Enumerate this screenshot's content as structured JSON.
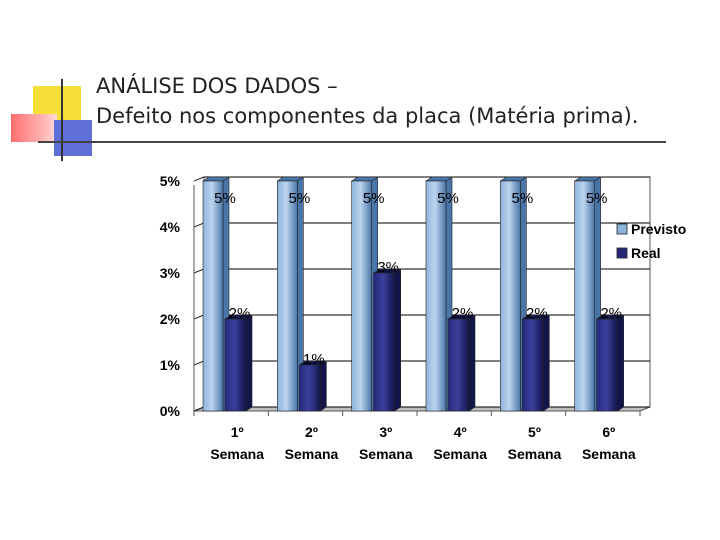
{
  "slide": {
    "title_line1": "ANÁLISE DOS DADOS –",
    "title_line2": "Defeito nos componentes da placa (Matéria prima)."
  },
  "colors": {
    "previsto_light": "#bcd4ee",
    "previsto_mid": "#8fb4dc",
    "previsto_dark": "#4a75a8",
    "real_light": "#3a3f9e",
    "real_mid": "#26297a",
    "real_dark": "#13154a"
  },
  "chart_data": {
    "type": "bar",
    "categories": [
      [
        "1º",
        "Semana"
      ],
      [
        "2º",
        "Semana"
      ],
      [
        "3º",
        "Semana"
      ],
      [
        "4º",
        "Semana"
      ],
      [
        "5º",
        "Semana"
      ],
      [
        "6º",
        "Semana"
      ]
    ],
    "series": [
      {
        "name": "Previsto",
        "values": [
          5,
          5,
          5,
          5,
          5,
          5
        ],
        "labels": [
          "5%",
          "5%",
          "5%",
          "5%",
          "5%",
          "5%"
        ]
      },
      {
        "name": "Real",
        "values": [
          2,
          1,
          3,
          2,
          2,
          2
        ],
        "labels": [
          "2%",
          "1%",
          "3%",
          "2%",
          "2%",
          "2%"
        ]
      }
    ],
    "y_ticks": [
      "0%",
      "1%",
      "2%",
      "3%",
      "4%",
      "5%"
    ],
    "ylim": [
      0,
      5
    ],
    "grid": true,
    "legend": "right",
    "bar_style": "3d-cylinder"
  }
}
